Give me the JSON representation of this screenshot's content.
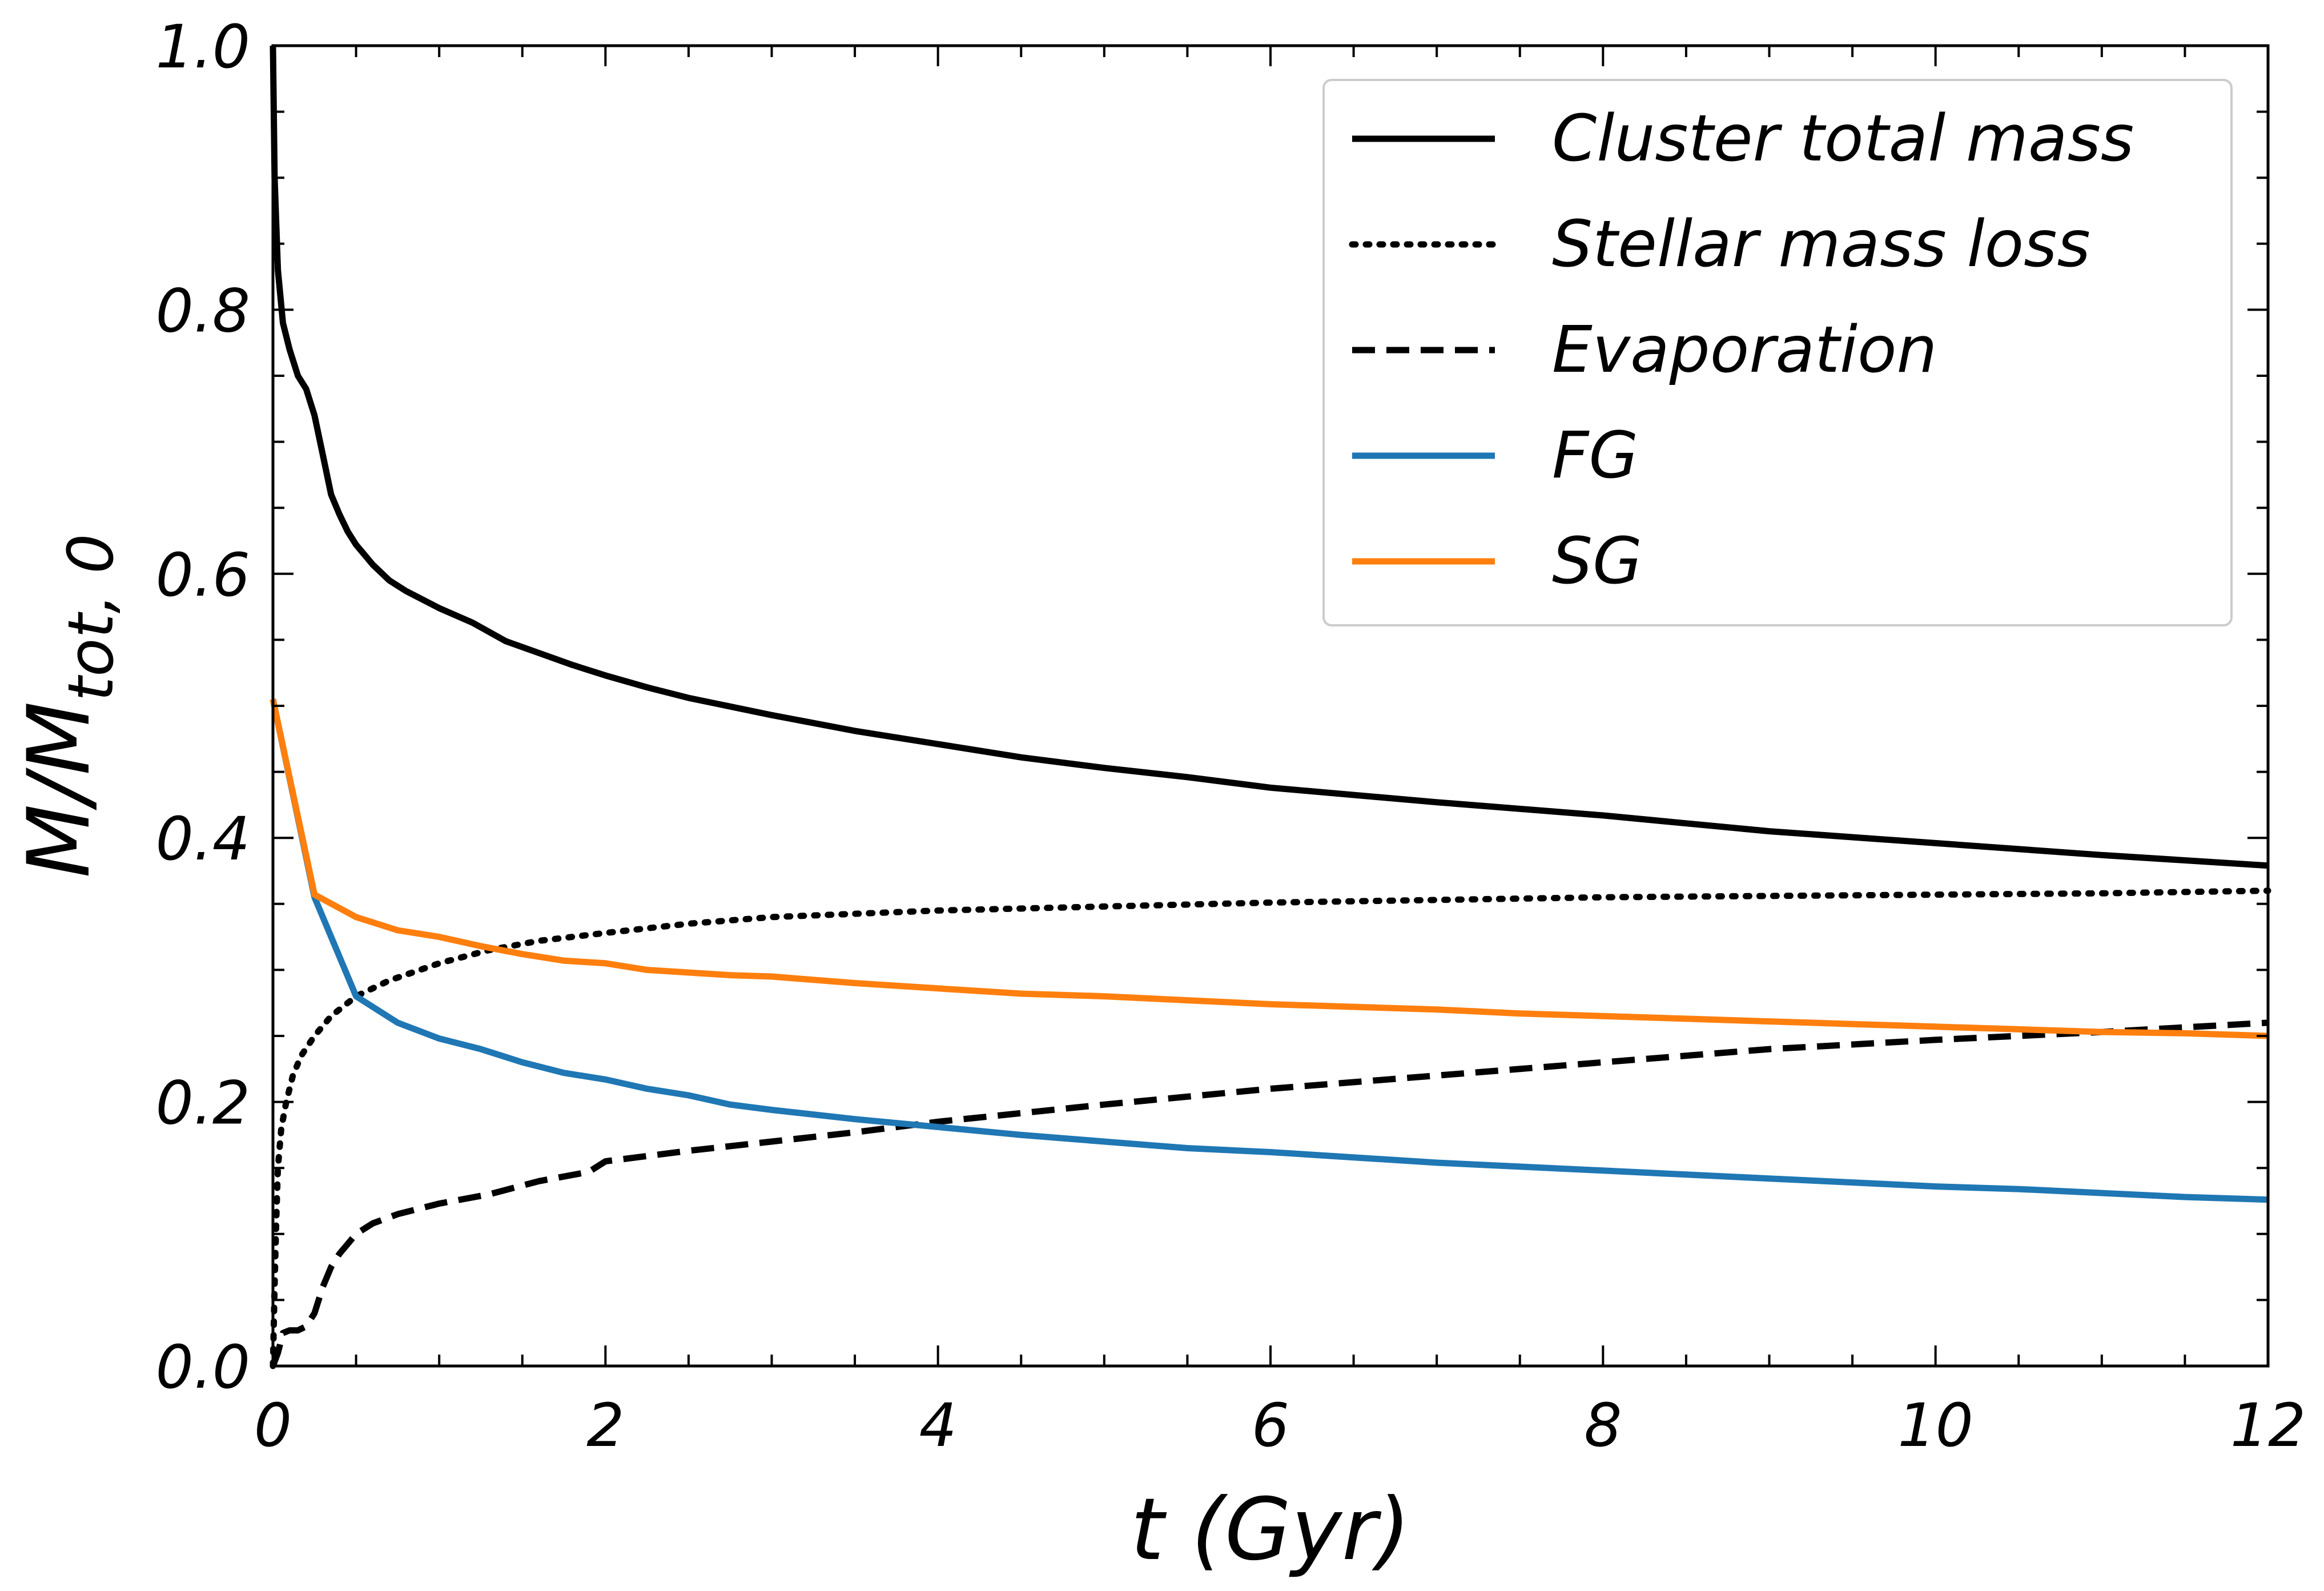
{
  "chart_data": {
    "type": "line",
    "xlabel": "t (Gyr)",
    "ylabel": {
      "main": "M/M",
      "sub": "tot, 0"
    },
    "xlim": [
      0,
      12
    ],
    "ylim": [
      0,
      1.0
    ],
    "x_ticks": [
      0,
      2,
      4,
      6,
      8,
      10,
      12
    ],
    "x_tick_labels": [
      "0",
      "2",
      "4",
      "6",
      "8",
      "10",
      "12"
    ],
    "y_ticks": [
      0.0,
      0.2,
      0.4,
      0.6,
      0.8,
      1.0
    ],
    "y_tick_labels": [
      "0.0",
      "0.2",
      "0.4",
      "0.6",
      "0.8",
      "1.0"
    ],
    "grid": false,
    "legend_position": "upper-right",
    "series": [
      {
        "name": "Cluster total mass",
        "color": "#000000",
        "style": "solid",
        "x": [
          0.0,
          0.01,
          0.03,
          0.06,
          0.1,
          0.15,
          0.2,
          0.25,
          0.3,
          0.35,
          0.4,
          0.45,
          0.5,
          0.6,
          0.7,
          0.8,
          1.0,
          1.2,
          1.4,
          1.6,
          1.8,
          2.0,
          2.25,
          2.5,
          3.0,
          3.5,
          4.0,
          4.5,
          5.0,
          5.5,
          6.0,
          7.0,
          8.0,
          9.0,
          10.0,
          11.0,
          12.0
        ],
        "y": [
          1.0,
          0.9,
          0.83,
          0.79,
          0.77,
          0.75,
          0.74,
          0.72,
          0.69,
          0.66,
          0.645,
          0.632,
          0.622,
          0.607,
          0.595,
          0.587,
          0.574,
          0.563,
          0.549,
          0.54,
          0.531,
          0.523,
          0.514,
          0.506,
          0.493,
          0.481,
          0.471,
          0.461,
          0.453,
          0.446,
          0.438,
          0.427,
          0.417,
          0.405,
          0.396,
          0.387,
          0.379
        ]
      },
      {
        "name": "Stellar mass loss",
        "color": "#000000",
        "style": "dotted",
        "x": [
          0.0,
          0.01,
          0.02,
          0.03,
          0.05,
          0.08,
          0.12,
          0.17,
          0.25,
          0.35,
          0.5,
          0.7,
          1.0,
          1.3,
          1.6,
          2.0,
          2.5,
          3.0,
          4.0,
          5.0,
          6.0,
          7.0,
          8.0,
          9.0,
          10.0,
          11.0,
          12.0
        ],
        "y": [
          0.0,
          0.06,
          0.11,
          0.15,
          0.18,
          0.2,
          0.22,
          0.235,
          0.25,
          0.265,
          0.28,
          0.292,
          0.305,
          0.315,
          0.322,
          0.328,
          0.335,
          0.34,
          0.345,
          0.348,
          0.351,
          0.353,
          0.355,
          0.356,
          0.357,
          0.358,
          0.36
        ]
      },
      {
        "name": "Evaporation",
        "color": "#000000",
        "style": "dashed",
        "x": [
          0.0,
          0.03,
          0.06,
          0.1,
          0.15,
          0.2,
          0.25,
          0.3,
          0.35,
          0.4,
          0.5,
          0.6,
          0.75,
          1.0,
          1.3,
          1.6,
          1.9,
          2.0,
          2.5,
          3.0,
          3.5,
          4.0,
          5.0,
          6.0,
          7.0,
          8.0,
          9.0,
          10.0,
          11.0,
          12.0
        ],
        "y": [
          0.0,
          0.01,
          0.025,
          0.027,
          0.027,
          0.03,
          0.04,
          0.06,
          0.075,
          0.085,
          0.1,
          0.108,
          0.115,
          0.123,
          0.13,
          0.14,
          0.147,
          0.155,
          0.163,
          0.17,
          0.177,
          0.185,
          0.198,
          0.21,
          0.22,
          0.23,
          0.24,
          0.247,
          0.253,
          0.26
        ]
      },
      {
        "name": "FG",
        "color": "#1f77b4",
        "style": "solid",
        "x": [
          0.0,
          0.25,
          0.5,
          0.75,
          1.0,
          1.25,
          1.5,
          1.75,
          2.0,
          2.25,
          2.5,
          2.75,
          3.0,
          3.5,
          4.0,
          4.5,
          5.0,
          5.5,
          6.0,
          6.5,
          7.0,
          7.5,
          8.0,
          8.5,
          9.0,
          9.5,
          10.0,
          10.5,
          11.0,
          11.5,
          12.0
        ],
        "y": [
          0.505,
          0.355,
          0.28,
          0.26,
          0.248,
          0.24,
          0.23,
          0.222,
          0.217,
          0.21,
          0.205,
          0.198,
          0.194,
          0.187,
          0.181,
          0.175,
          0.17,
          0.165,
          0.162,
          0.158,
          0.154,
          0.151,
          0.148,
          0.145,
          0.142,
          0.139,
          0.136,
          0.134,
          0.131,
          0.128,
          0.126
        ]
      },
      {
        "name": "SG",
        "color": "#ff7f0e",
        "style": "solid",
        "x": [
          0.0,
          0.25,
          0.5,
          0.75,
          1.0,
          1.25,
          1.5,
          1.75,
          2.0,
          2.25,
          2.5,
          2.75,
          3.0,
          3.5,
          4.0,
          4.5,
          5.0,
          5.5,
          6.0,
          6.5,
          7.0,
          7.5,
          8.0,
          8.5,
          9.0,
          9.5,
          10.0,
          10.5,
          11.0,
          11.5,
          12.0
        ],
        "y": [
          0.505,
          0.357,
          0.34,
          0.33,
          0.325,
          0.318,
          0.312,
          0.307,
          0.305,
          0.3,
          0.298,
          0.296,
          0.295,
          0.29,
          0.286,
          0.282,
          0.28,
          0.277,
          0.274,
          0.272,
          0.27,
          0.267,
          0.265,
          0.263,
          0.261,
          0.259,
          0.257,
          0.255,
          0.253,
          0.252,
          0.25
        ]
      }
    ]
  }
}
